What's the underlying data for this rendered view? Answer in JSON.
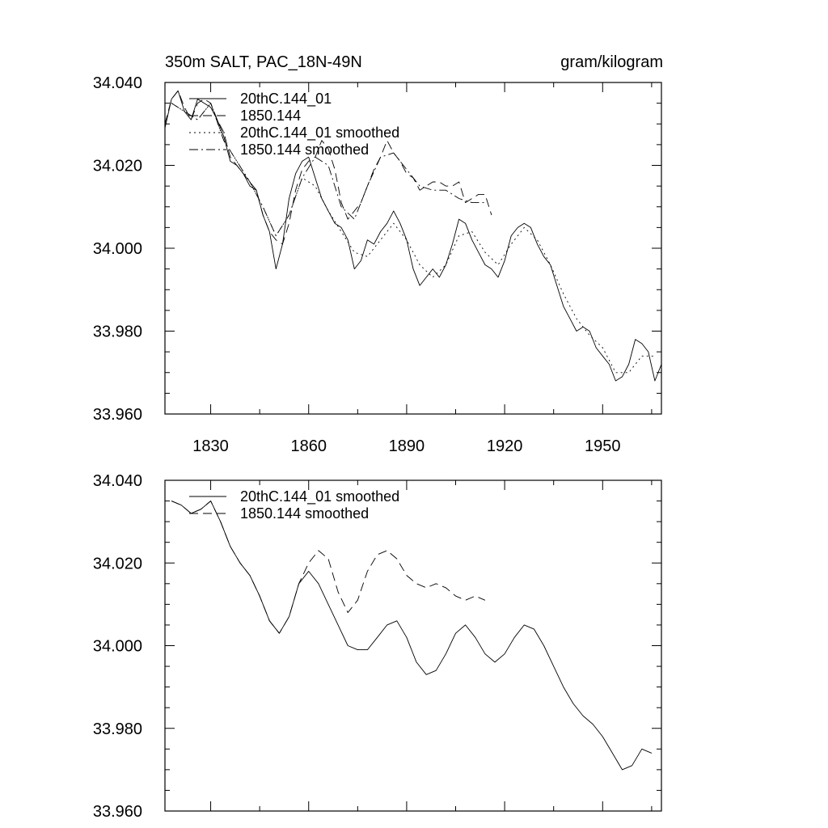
{
  "chart_data": [
    {
      "type": "line",
      "title": "350m SALT, PAC_18N-49N",
      "units": "gram/kilogram",
      "xlabel": "",
      "ylabel": "",
      "xlim": [
        1816,
        1968
      ],
      "ylim": [
        33.96,
        34.04
      ],
      "x_ticks": [
        1830,
        1860,
        1890,
        1920,
        1950
      ],
      "x_tick_labels": [
        "1830",
        "1860",
        "1890",
        "1920",
        "1950"
      ],
      "y_ticks": [
        33.96,
        33.98,
        34.0,
        34.02,
        34.04
      ],
      "y_tick_labels": [
        "33.960",
        "33.980",
        "34.000",
        "34.020",
        "34.040"
      ],
      "legend_position": "top-left",
      "series": [
        {
          "name": "20thC.144_01",
          "style": "solid",
          "x": [
            1816,
            1818,
            1820,
            1822,
            1824,
            1826,
            1828,
            1830,
            1832,
            1834,
            1836,
            1838,
            1840,
            1842,
            1844,
            1846,
            1848,
            1850,
            1852,
            1854,
            1856,
            1858,
            1860,
            1862,
            1864,
            1866,
            1868,
            1870,
            1872,
            1874,
            1876,
            1878,
            1880,
            1882,
            1884,
            1886,
            1888,
            1890,
            1892,
            1894,
            1896,
            1898,
            1900,
            1902,
            1904,
            1906,
            1908,
            1910,
            1912,
            1914,
            1916,
            1918,
            1920,
            1922,
            1924,
            1926,
            1928,
            1930,
            1932,
            1934,
            1936,
            1938,
            1940,
            1942,
            1944,
            1946,
            1948,
            1950,
            1952,
            1954,
            1956,
            1958,
            1960,
            1962,
            1964,
            1966,
            1968
          ],
          "values": [
            34.029,
            34.036,
            34.038,
            34.033,
            34.031,
            34.036,
            34.035,
            34.034,
            34.031,
            34.027,
            34.021,
            34.02,
            34.018,
            34.015,
            34.014,
            34.008,
            34.004,
            33.995,
            34.001,
            34.012,
            34.018,
            34.021,
            34.022,
            34.017,
            34.012,
            34.009,
            34.006,
            34.005,
            34.002,
            33.995,
            33.997,
            34.002,
            34.001,
            34.004,
            34.006,
            34.009,
            34.006,
            34.002,
            33.995,
            33.991,
            33.993,
            33.995,
            33.993,
            33.996,
            34.001,
            34.007,
            34.006,
            34.002,
            33.999,
            33.996,
            33.995,
            33.993,
            33.997,
            34.003,
            34.005,
            34.006,
            34.005,
            34.001,
            33.998,
            33.996,
            33.991,
            33.986,
            33.983,
            33.98,
            33.981,
            33.98,
            33.976,
            33.974,
            33.972,
            33.968,
            33.969,
            33.972,
            33.978,
            33.977,
            33.975,
            33.968,
            33.972
          ]
        },
        {
          "name": "1850.144",
          "style": "dash",
          "x": [
            1816,
            1818,
            1820,
            1822,
            1824,
            1826,
            1828,
            1830,
            1832,
            1834,
            1836,
            1838,
            1840,
            1842,
            1844,
            1846,
            1848,
            1850,
            1852,
            1854,
            1856,
            1858,
            1860,
            1862,
            1864,
            1866,
            1868,
            1870,
            1872,
            1874,
            1876,
            1878,
            1880,
            1882,
            1884,
            1886,
            1888,
            1890,
            1892,
            1894,
            1896,
            1898,
            1900,
            1902,
            1904,
            1906,
            1908,
            1910,
            1912,
            1914,
            1916
          ],
          "values": [
            34.03,
            34.036,
            34.038,
            34.034,
            34.031,
            34.035,
            34.036,
            34.035,
            34.031,
            34.028,
            34.022,
            34.02,
            34.018,
            34.016,
            34.014,
            34.008,
            34.004,
            34.002,
            34.001,
            34.006,
            34.014,
            34.019,
            34.021,
            34.022,
            34.026,
            34.024,
            34.019,
            34.011,
            34.007,
            34.009,
            34.011,
            34.015,
            34.019,
            34.022,
            34.026,
            34.023,
            34.021,
            34.018,
            34.017,
            34.014,
            34.015,
            34.016,
            34.016,
            34.015,
            34.015,
            34.016,
            34.011,
            34.012,
            34.013,
            34.013,
            34.008
          ]
        },
        {
          "name": "20thC.144_01 smoothed",
          "style": "dot",
          "x": [
            1818,
            1822,
            1826,
            1830,
            1834,
            1838,
            1842,
            1846,
            1850,
            1854,
            1858,
            1862,
            1866,
            1870,
            1874,
            1878,
            1882,
            1886,
            1890,
            1894,
            1898,
            1902,
            1906,
            1910,
            1914,
            1918,
            1922,
            1926,
            1930,
            1934,
            1938,
            1942,
            1946,
            1950,
            1954,
            1958,
            1962,
            1966
          ],
          "values": [
            34.035,
            34.033,
            34.031,
            34.035,
            34.026,
            34.021,
            34.016,
            34.01,
            34.003,
            34.008,
            34.017,
            34.015,
            34.009,
            34.004,
            33.999,
            33.998,
            34.002,
            34.006,
            34.002,
            33.996,
            33.993,
            33.996,
            34.003,
            34.004,
            33.999,
            33.996,
            34.001,
            34.005,
            34.002,
            33.996,
            33.989,
            33.983,
            33.979,
            33.976,
            33.97,
            33.97,
            33.974,
            33.974
          ]
        },
        {
          "name": "1850.144 smoothed",
          "style": "dashdot",
          "x": [
            1818,
            1822,
            1826,
            1830,
            1834,
            1838,
            1842,
            1846,
            1850,
            1854,
            1858,
            1862,
            1866,
            1870,
            1874,
            1878,
            1882,
            1886,
            1890,
            1894,
            1898,
            1902,
            1906,
            1910,
            1914
          ],
          "values": [
            34.035,
            34.033,
            34.031,
            34.035,
            34.026,
            34.021,
            34.016,
            34.01,
            34.003,
            34.008,
            34.017,
            34.022,
            34.02,
            34.01,
            34.007,
            34.015,
            34.022,
            34.023,
            34.019,
            34.015,
            34.014,
            34.014,
            34.012,
            34.011,
            34.011
          ]
        }
      ]
    },
    {
      "type": "line",
      "title": "",
      "xlabel": "",
      "ylabel": "",
      "xlim": [
        1816,
        1968
      ],
      "ylim": [
        33.96,
        34.04
      ],
      "x_ticks": [
        1830,
        1860,
        1890,
        1920,
        1950
      ],
      "x_tick_labels": [],
      "y_ticks": [
        33.96,
        33.98,
        34.0,
        34.02,
        34.04
      ],
      "y_tick_labels": [
        "33.960",
        "33.980",
        "34.000",
        "34.020",
        "34.040"
      ],
      "legend_position": "top-left",
      "series": [
        {
          "name": "20thC.144_01 smoothed",
          "style": "solid",
          "x": [
            1818,
            1821,
            1824,
            1827,
            1830,
            1833,
            1836,
            1839,
            1842,
            1845,
            1848,
            1851,
            1854,
            1857,
            1860,
            1863,
            1866,
            1869,
            1872,
            1875,
            1878,
            1881,
            1884,
            1887,
            1890,
            1893,
            1896,
            1899,
            1902,
            1905,
            1908,
            1911,
            1914,
            1917,
            1920,
            1923,
            1926,
            1929,
            1932,
            1935,
            1938,
            1941,
            1944,
            1947,
            1950,
            1953,
            1956,
            1959,
            1962,
            1965
          ],
          "values": [
            34.035,
            34.034,
            34.032,
            34.033,
            34.035,
            34.03,
            34.024,
            34.02,
            34.017,
            34.012,
            34.006,
            34.003,
            34.007,
            34.015,
            34.018,
            34.015,
            34.01,
            34.005,
            34.0,
            33.999,
            33.999,
            34.002,
            34.005,
            34.006,
            34.002,
            33.996,
            33.993,
            33.994,
            33.998,
            34.003,
            34.005,
            34.002,
            33.998,
            33.996,
            33.998,
            34.002,
            34.005,
            34.004,
            34.0,
            33.995,
            33.99,
            33.986,
            33.983,
            33.981,
            33.978,
            33.974,
            33.97,
            33.971,
            33.975,
            33.974
          ]
        },
        {
          "name": "1850.144 smoothed",
          "style": "dash",
          "x": [
            1818,
            1821,
            1824,
            1827,
            1830,
            1833,
            1836,
            1839,
            1842,
            1845,
            1848,
            1851,
            1854,
            1857,
            1860,
            1863,
            1866,
            1869,
            1872,
            1875,
            1878,
            1881,
            1884,
            1887,
            1890,
            1893,
            1896,
            1899,
            1902,
            1905,
            1908,
            1911,
            1914
          ],
          "values": [
            34.035,
            34.034,
            34.032,
            34.033,
            34.035,
            34.03,
            34.024,
            34.02,
            34.017,
            34.012,
            34.006,
            34.003,
            34.007,
            34.015,
            34.02,
            34.023,
            34.021,
            34.013,
            34.008,
            34.011,
            34.018,
            34.022,
            34.023,
            34.021,
            34.017,
            34.015,
            34.014,
            34.015,
            34.014,
            34.012,
            34.011,
            34.012,
            34.011
          ]
        }
      ]
    }
  ]
}
